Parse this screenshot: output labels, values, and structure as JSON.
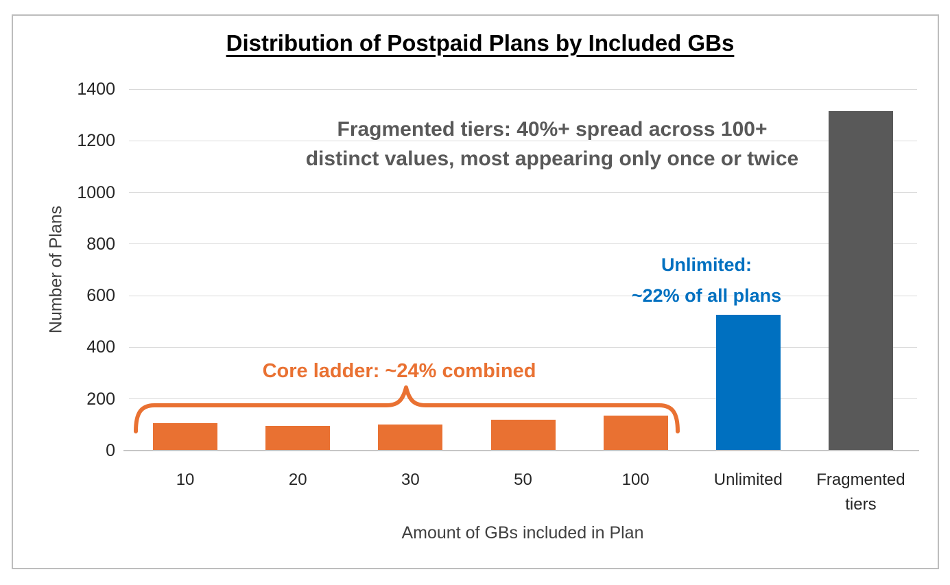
{
  "title": "Distribution of Postpaid Plans by Included GBs",
  "colors": {
    "orange": "#E97132",
    "blue": "#0070C0",
    "dark_gray": "#595959",
    "gridline": "#D9D9D9",
    "frame_border": "#BDBDBD",
    "tick_text": "#262626",
    "axis_title_text": "#404040"
  },
  "chart_data": {
    "type": "bar",
    "title": "Distribution of Postpaid Plans by Included GBs",
    "categories": [
      "10",
      "20",
      "30",
      "50",
      "100",
      "Unlimited",
      "Fragmented tiers"
    ],
    "values": [
      105,
      95,
      100,
      120,
      135,
      525,
      1315
    ],
    "bar_colors": [
      "#E97132",
      "#E97132",
      "#E97132",
      "#E97132",
      "#E97132",
      "#0070C0",
      "#595959"
    ],
    "xlabel": "Amount of GBs included in Plan",
    "ylabel": "Number of Plans",
    "ylim": [
      0,
      1400
    ],
    "yticks": [
      0,
      200,
      400,
      600,
      800,
      1000,
      1200,
      1400
    ],
    "grid": true,
    "legend": false,
    "annotations": [
      {
        "id": "fragmented-note",
        "color": "#595959",
        "lines": [
          "Fragmented tiers: 40%+ spread across 100+",
          "distinct values, most appearing only once or twice"
        ]
      },
      {
        "id": "unlimited-note",
        "color": "#0070C0",
        "lines": [
          "Unlimited:",
          "~22% of all plans"
        ]
      },
      {
        "id": "core-ladder-note",
        "color": "#E97132",
        "lines": [
          "Core ladder: ~24% combined"
        ],
        "brace_spans": "bars 10 through 100"
      }
    ]
  }
}
